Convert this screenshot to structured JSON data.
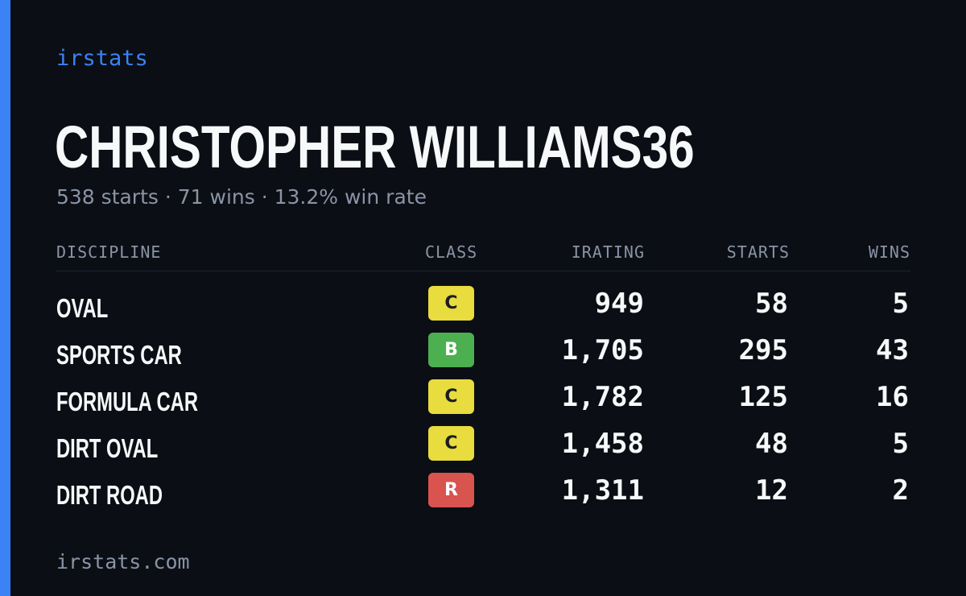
{
  "brand": "irstats",
  "driver": {
    "name": "CHRISTOPHER WILLIAMS36",
    "summary": "538 starts · 71 wins · 13.2% win rate"
  },
  "colors": {
    "accent": "#3b82f6",
    "background": "#0b0e14",
    "text_primary": "#f7f8fa",
    "text_muted": "#8a94a6"
  },
  "table": {
    "headers": {
      "discipline": "DISCIPLINE",
      "class": "CLASS",
      "irating": "IRATING",
      "starts": "STARTS",
      "wins": "WINS"
    },
    "rows": [
      {
        "discipline": "OVAL",
        "class": "C",
        "class_color": "#e8dc3f",
        "class_text_light": false,
        "irating": "949",
        "starts": "58",
        "wins": "5"
      },
      {
        "discipline": "SPORTS CAR",
        "class": "B",
        "class_color": "#4caf50",
        "class_text_light": true,
        "irating": "1,705",
        "starts": "295",
        "wins": "43"
      },
      {
        "discipline": "FORMULA CAR",
        "class": "C",
        "class_color": "#e8dc3f",
        "class_text_light": false,
        "irating": "1,782",
        "starts": "125",
        "wins": "16"
      },
      {
        "discipline": "DIRT OVAL",
        "class": "C",
        "class_color": "#e8dc3f",
        "class_text_light": false,
        "irating": "1,458",
        "starts": "48",
        "wins": "5"
      },
      {
        "discipline": "DIRT ROAD",
        "class": "R",
        "class_color": "#d9534f",
        "class_text_light": true,
        "irating": "1,311",
        "starts": "12",
        "wins": "2"
      }
    ]
  },
  "footer": {
    "url": "irstats.com"
  }
}
